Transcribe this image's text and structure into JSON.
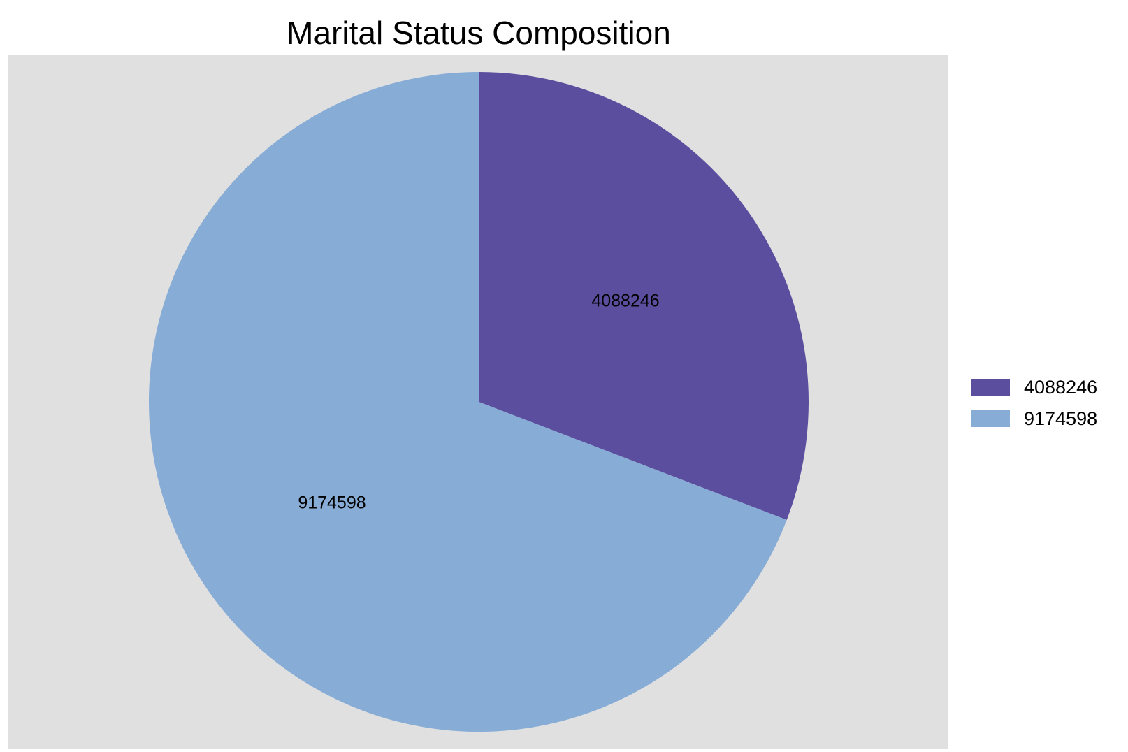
{
  "chart_data": {
    "type": "pie",
    "title": "Marital Status Composition",
    "slices": [
      {
        "label": "4088246",
        "value": 4088246,
        "color": "#5b4e9f"
      },
      {
        "label": "9174598",
        "value": 9174598,
        "color": "#87acd6"
      }
    ],
    "legend": {
      "placement": "right",
      "entries": [
        "4088246",
        "9174598"
      ]
    },
    "panel_background": "#e0e0e0",
    "start_angle": "12 o'clock",
    "direction": "clockwise"
  }
}
